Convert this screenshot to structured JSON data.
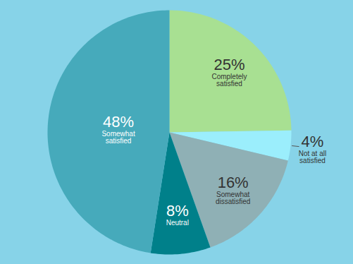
{
  "chart_data": {
    "type": "pie",
    "categories": [
      "Completely satisfied",
      "Not at all satisfied",
      "Somewhat dissatisfied",
      "Neutral",
      "Somewhat satisfied"
    ],
    "values": [
      25,
      4,
      16,
      8,
      48
    ],
    "value_labels": [
      "25%",
      "4%",
      "16%",
      "8%",
      "48%"
    ],
    "colors": [
      "#a8e092",
      "#9beefc",
      "#8fb0b5",
      "#00808a",
      "#46aabb"
    ],
    "data_labels": true
  }
}
